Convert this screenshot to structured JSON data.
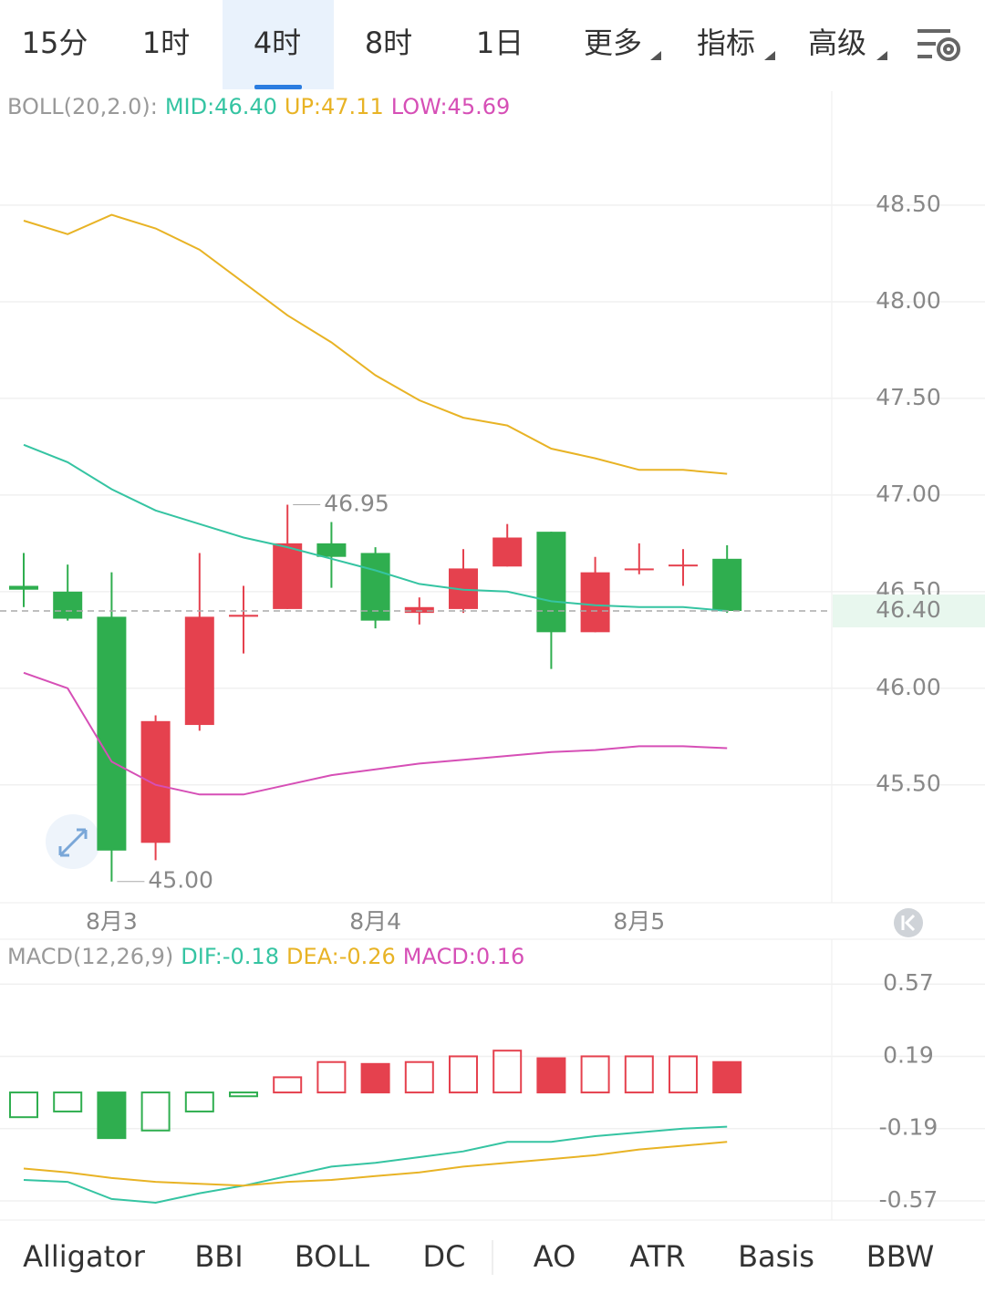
{
  "top_tabs": {
    "items": [
      "15分",
      "1时",
      "4时",
      "8时",
      "1日",
      "更多",
      "指标",
      "高级"
    ],
    "active": 2
  },
  "indicator_tabs": {
    "items": [
      "Alligator",
      "BBI",
      "BOLL",
      "DC",
      "AO",
      "ATR",
      "Basis",
      "BBW"
    ],
    "active": 2
  },
  "chart_data": [
    {
      "type": "candlestick",
      "title": "BOLL(20,2.0):",
      "categories": [
        null,
        null,
        "8月3",
        null,
        null,
        null,
        null,
        null,
        "8月4",
        null,
        null,
        null,
        null,
        null,
        "8月5",
        null,
        null
      ],
      "candles": {
        "open": [
          46.53,
          46.5,
          46.37,
          45.2,
          45.81,
          46.37,
          46.41,
          46.75,
          46.7,
          46.39,
          46.41,
          46.63,
          46.81,
          46.29,
          46.62,
          46.64,
          46.67
        ],
        "high": [
          46.7,
          46.64,
          46.6,
          45.86,
          46.7,
          46.53,
          46.95,
          46.86,
          46.73,
          46.47,
          46.72,
          46.85,
          46.81,
          46.68,
          46.75,
          46.72,
          46.74
        ],
        "low": [
          46.42,
          46.35,
          45.0,
          45.11,
          45.78,
          46.18,
          46.41,
          46.52,
          46.31,
          46.33,
          46.39,
          46.63,
          46.1,
          46.29,
          46.59,
          46.53,
          46.39
        ],
        "close": [
          46.51,
          46.36,
          45.16,
          45.83,
          46.37,
          46.38,
          46.75,
          46.68,
          46.35,
          46.42,
          46.62,
          46.78,
          46.29,
          46.6,
          46.62,
          46.64,
          46.4
        ],
        "up_color": "#e5414e",
        "down_color": "#2fae4f"
      },
      "series": [
        {
          "name": "MID:46.40",
          "color": "#35c4a2",
          "values": [
            47.26,
            47.17,
            47.03,
            46.92,
            46.85,
            46.78,
            46.73,
            46.67,
            46.61,
            46.54,
            46.51,
            46.5,
            46.45,
            46.43,
            46.42,
            46.42,
            46.4
          ]
        },
        {
          "name": "UP:47.11",
          "color": "#e8b325",
          "values": [
            48.42,
            48.35,
            48.45,
            48.38,
            48.27,
            48.1,
            47.93,
            47.79,
            47.62,
            47.49,
            47.4,
            47.36,
            47.24,
            47.19,
            47.13,
            47.13,
            47.11
          ]
        },
        {
          "name": "LOW:45.69",
          "color": "#d64fb6",
          "values": [
            46.08,
            46.0,
            45.62,
            45.5,
            45.45,
            45.45,
            45.5,
            45.55,
            45.58,
            45.61,
            45.63,
            45.65,
            45.67,
            45.68,
            45.7,
            45.7,
            45.69
          ]
        }
      ],
      "annotations": [
        {
          "value": 46.95,
          "label": "46.95"
        },
        {
          "value": 45,
          "label": "45.00"
        }
      ],
      "last_price": {
        "value": 46.4,
        "label": "46.40"
      },
      "ylim": [
        44.89,
        49.09
      ],
      "yticks": [
        {
          "value": 45.5,
          "label": "45.50"
        },
        {
          "value": 46,
          "label": "46.00"
        },
        {
          "value": 46.5,
          "label": "46.50"
        },
        {
          "value": 47,
          "label": "47.00"
        },
        {
          "value": 47.5,
          "label": "47.50"
        },
        {
          "value": 48,
          "label": "48.00"
        },
        {
          "value": 48.5,
          "label": "48.50"
        }
      ],
      "grid": true
    },
    {
      "type": "macd",
      "title": "MACD(12,26,9)",
      "histogram": {
        "name": "MACD:0.16",
        "color": "#d64fb6",
        "values": [
          -0.13,
          -0.1,
          -0.24,
          -0.2,
          -0.1,
          -0.02,
          0.08,
          0.16,
          0.15,
          0.16,
          0.19,
          0.22,
          0.18,
          0.19,
          0.19,
          0.19,
          0.16
        ],
        "hollow": [
          true,
          true,
          false,
          true,
          true,
          true,
          true,
          true,
          false,
          true,
          true,
          true,
          false,
          true,
          true,
          true,
          false
        ],
        "up_color": "#e5414e",
        "down_color": "#2fae4f"
      },
      "series": [
        {
          "name": "DIF:-0.18",
          "color": "#35c4a2",
          "values": [
            -0.46,
            -0.47,
            -0.56,
            -0.58,
            -0.53,
            -0.49,
            -0.44,
            -0.39,
            -0.37,
            -0.34,
            -0.31,
            -0.26,
            -0.26,
            -0.23,
            -0.21,
            -0.19,
            -0.18
          ]
        },
        {
          "name": "DEA:-0.26",
          "color": "#e8b325",
          "values": [
            -0.4,
            -0.42,
            -0.45,
            -0.47,
            -0.48,
            -0.49,
            -0.47,
            -0.46,
            -0.44,
            -0.42,
            -0.39,
            -0.37,
            -0.35,
            -0.33,
            -0.3,
            -0.28,
            -0.26
          ]
        }
      ],
      "ylim": [
        -0.671,
        0.806
      ],
      "yticks": [
        -0.57,
        -0.19,
        0.19,
        0.57
      ],
      "grid": true
    }
  ]
}
